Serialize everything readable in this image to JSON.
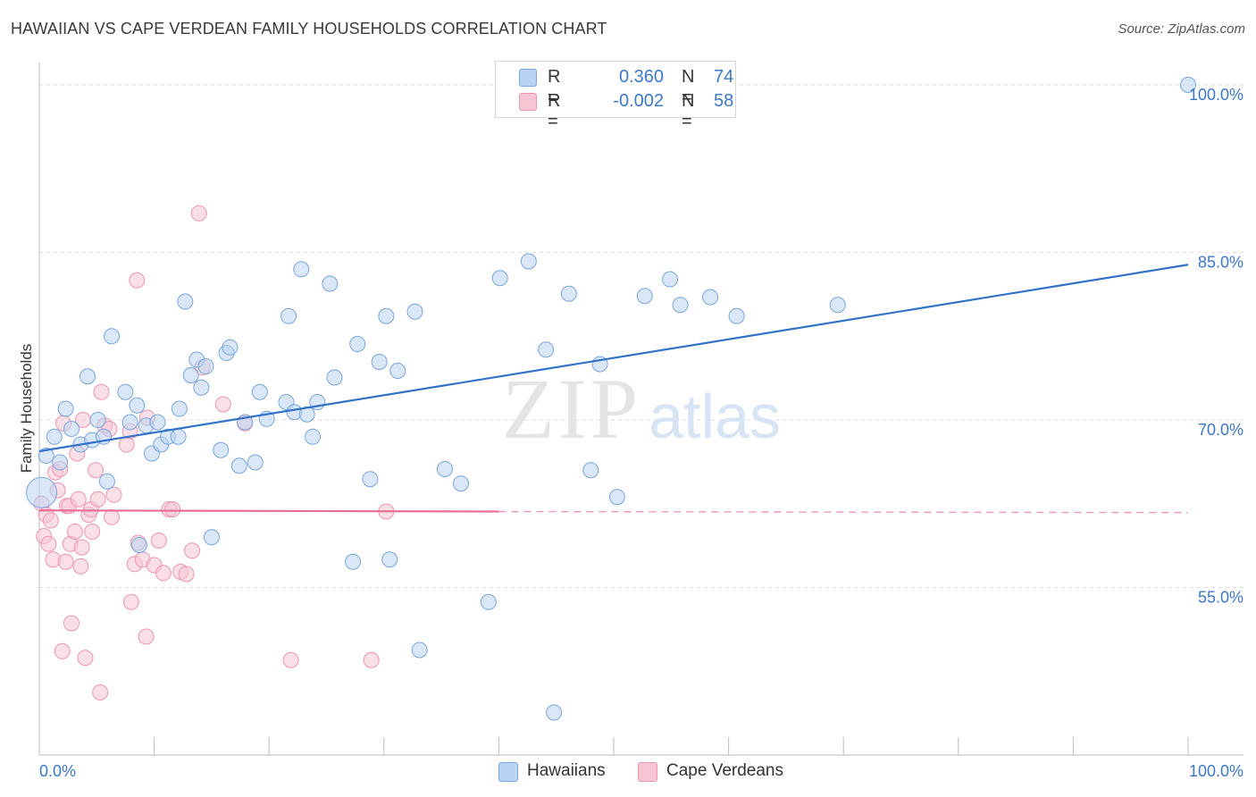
{
  "title": "HAWAIIAN VS CAPE VERDEAN FAMILY HOUSEHOLDS CORRELATION CHART",
  "source": "Source: ZipAtlas.com",
  "watermark": {
    "zip": "ZIP",
    "atlas": "atlas"
  },
  "legend": {
    "series": [
      {
        "r_label": "R =",
        "r_value": "0.360",
        "n_label": "N =",
        "n_value": "74"
      },
      {
        "r_label": "R =",
        "r_value": "-0.002",
        "n_label": "N =",
        "n_value": "58"
      }
    ]
  },
  "bottom_legend": [
    "Hawaiians",
    "Cape Verdeans"
  ],
  "colors": {
    "blue_fill": "#b9d3f2",
    "blue_stroke": "#7aa6dc",
    "blue_line": "#3272c8",
    "pink_fill": "#f7c4d4",
    "pink_stroke": "#ec97b1",
    "pink_line": "#ea6d95",
    "tick_label": "#3d78c6",
    "grid": "#dcdcdc"
  },
  "chart_data": {
    "type": "scatter",
    "title": "HAWAIIAN VS CAPE VERDEAN FAMILY HOUSEHOLDS CORRELATION CHART",
    "xlabel": "",
    "ylabel": "Family Households",
    "xlim": [
      0,
      100
    ],
    "ylim": [
      40,
      102
    ],
    "x_tick_labels": [
      {
        "value": 0,
        "label": "0.0%"
      },
      {
        "value": 100,
        "label": "100.0%"
      }
    ],
    "y_tick_labels": [
      {
        "value": 55,
        "label": "55.0%"
      },
      {
        "value": 70,
        "label": "70.0%"
      },
      {
        "value": 85,
        "label": "85.0%"
      },
      {
        "value": 100,
        "label": "100.0%"
      }
    ],
    "series": [
      {
        "name": "Hawaiians",
        "r": 0.36,
        "n": 74,
        "trend": {
          "x": [
            0,
            100
          ],
          "y": [
            67.2,
            83.9
          ]
        },
        "points": [
          [
            0.2,
            63.5
          ],
          [
            0.6,
            66.8
          ],
          [
            1.3,
            68.5
          ],
          [
            1.8,
            66.2
          ],
          [
            2.3,
            71.0
          ],
          [
            2.8,
            69.2
          ],
          [
            3.6,
            67.8
          ],
          [
            4.2,
            73.9
          ],
          [
            4.6,
            68.2
          ],
          [
            5.1,
            70.0
          ],
          [
            5.6,
            68.5
          ],
          [
            5.9,
            64.5
          ],
          [
            6.3,
            77.5
          ],
          [
            7.5,
            72.5
          ],
          [
            7.9,
            69.8
          ],
          [
            8.5,
            71.3
          ],
          [
            8.7,
            58.8
          ],
          [
            9.3,
            69.5
          ],
          [
            9.8,
            67.0
          ],
          [
            10.3,
            69.8
          ],
          [
            10.6,
            67.8
          ],
          [
            11.2,
            68.5
          ],
          [
            12.1,
            68.5
          ],
          [
            12.2,
            71.0
          ],
          [
            12.7,
            80.6
          ],
          [
            13.2,
            74.0
          ],
          [
            13.7,
            75.4
          ],
          [
            14.1,
            72.9
          ],
          [
            14.5,
            74.8
          ],
          [
            15.0,
            59.5
          ],
          [
            15.8,
            67.3
          ],
          [
            16.3,
            76.0
          ],
          [
            16.6,
            76.5
          ],
          [
            17.4,
            65.9
          ],
          [
            17.9,
            69.8
          ],
          [
            18.8,
            66.2
          ],
          [
            19.2,
            72.5
          ],
          [
            19.8,
            70.1
          ],
          [
            21.5,
            71.6
          ],
          [
            21.7,
            79.3
          ],
          [
            22.2,
            70.7
          ],
          [
            22.8,
            83.5
          ],
          [
            23.3,
            70.5
          ],
          [
            23.8,
            68.5
          ],
          [
            24.2,
            71.6
          ],
          [
            25.3,
            82.2
          ],
          [
            25.7,
            73.8
          ],
          [
            27.3,
            57.3
          ],
          [
            27.7,
            76.8
          ],
          [
            28.8,
            64.7
          ],
          [
            29.6,
            75.2
          ],
          [
            30.2,
            79.3
          ],
          [
            30.5,
            57.5
          ],
          [
            31.2,
            74.4
          ],
          [
            32.7,
            79.7
          ],
          [
            33.1,
            49.4
          ],
          [
            35.3,
            65.6
          ],
          [
            36.7,
            64.3
          ],
          [
            39.1,
            53.7
          ],
          [
            40.1,
            82.7
          ],
          [
            42.6,
            84.2
          ],
          [
            44.1,
            76.3
          ],
          [
            44.8,
            43.8
          ],
          [
            46.1,
            81.3
          ],
          [
            48.0,
            65.5
          ],
          [
            48.8,
            75.0
          ],
          [
            50.3,
            63.1
          ],
          [
            52.7,
            81.1
          ],
          [
            54.9,
            82.6
          ],
          [
            55.8,
            80.3
          ],
          [
            58.4,
            81.0
          ],
          [
            60.7,
            79.3
          ],
          [
            69.5,
            80.3
          ],
          [
            100.0,
            100.0
          ]
        ]
      },
      {
        "name": "Cape Verdeans",
        "r": -0.002,
        "n": 58,
        "trend": {
          "x": [
            0,
            40
          ],
          "y": [
            61.9,
            61.8
          ]
        },
        "trend_extension": {
          "x": [
            40,
            100
          ],
          "y": [
            61.8,
            61.7
          ]
        },
        "points": [
          [
            0.2,
            62.5
          ],
          [
            0.4,
            59.6
          ],
          [
            0.6,
            61.5
          ],
          [
            0.8,
            58.9
          ],
          [
            1.0,
            61.0
          ],
          [
            1.2,
            57.5
          ],
          [
            1.4,
            65.3
          ],
          [
            1.6,
            63.7
          ],
          [
            1.8,
            65.6
          ],
          [
            2.0,
            49.3
          ],
          [
            2.1,
            69.7
          ],
          [
            2.3,
            57.3
          ],
          [
            2.4,
            62.3
          ],
          [
            2.6,
            62.3
          ],
          [
            2.7,
            58.9
          ],
          [
            2.8,
            51.8
          ],
          [
            3.1,
            60.0
          ],
          [
            3.3,
            67.0
          ],
          [
            3.4,
            62.9
          ],
          [
            3.6,
            56.9
          ],
          [
            3.7,
            58.6
          ],
          [
            3.8,
            70.0
          ],
          [
            4.0,
            48.7
          ],
          [
            4.3,
            61.5
          ],
          [
            4.5,
            62.0
          ],
          [
            4.6,
            60.0
          ],
          [
            4.9,
            65.5
          ],
          [
            5.1,
            62.9
          ],
          [
            5.3,
            45.6
          ],
          [
            5.4,
            72.5
          ],
          [
            5.7,
            69.5
          ],
          [
            6.1,
            69.2
          ],
          [
            6.3,
            61.3
          ],
          [
            6.5,
            63.3
          ],
          [
            7.6,
            67.8
          ],
          [
            7.9,
            69.0
          ],
          [
            8.0,
            53.7
          ],
          [
            8.3,
            57.1
          ],
          [
            8.5,
            82.5
          ],
          [
            8.6,
            59.0
          ],
          [
            9.0,
            57.5
          ],
          [
            9.3,
            50.6
          ],
          [
            9.4,
            70.2
          ],
          [
            10.0,
            57.0
          ],
          [
            10.4,
            59.2
          ],
          [
            10.8,
            56.3
          ],
          [
            11.3,
            62.0
          ],
          [
            11.6,
            62.0
          ],
          [
            12.3,
            56.4
          ],
          [
            12.8,
            56.2
          ],
          [
            13.3,
            58.3
          ],
          [
            13.9,
            88.5
          ],
          [
            14.2,
            74.7
          ],
          [
            16.0,
            71.4
          ],
          [
            17.9,
            69.7
          ],
          [
            21.9,
            48.5
          ],
          [
            28.9,
            48.5
          ],
          [
            30.2,
            61.8
          ]
        ]
      }
    ]
  }
}
